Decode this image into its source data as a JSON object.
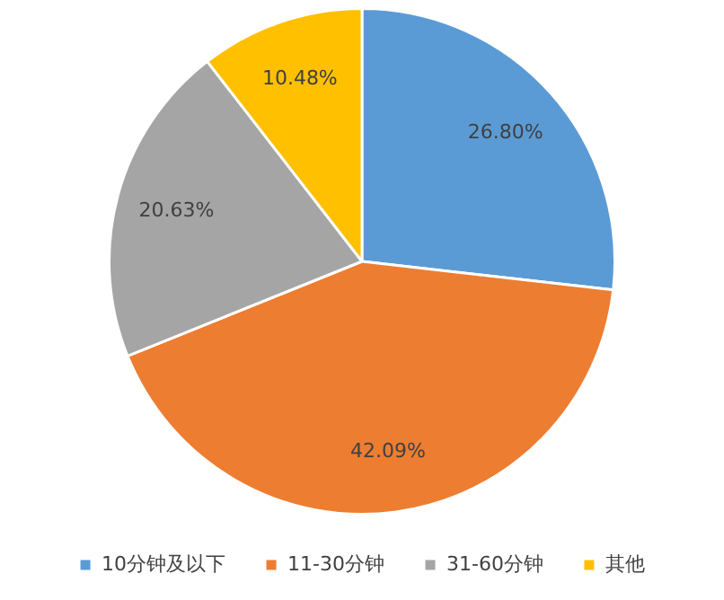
{
  "chart_data": {
    "type": "pie",
    "categories": [
      "10分钟及以下",
      "11-30分钟",
      "31-60分钟",
      "其他"
    ],
    "values": [
      26.8,
      42.09,
      20.63,
      10.48
    ],
    "colors": [
      "#5b9bd5",
      "#ed7d31",
      "#a5a5a5",
      "#ffc000"
    ],
    "value_labels": [
      "26.80%",
      "42.09%",
      "20.63%",
      "10.48%"
    ],
    "legend": "bottom"
  }
}
